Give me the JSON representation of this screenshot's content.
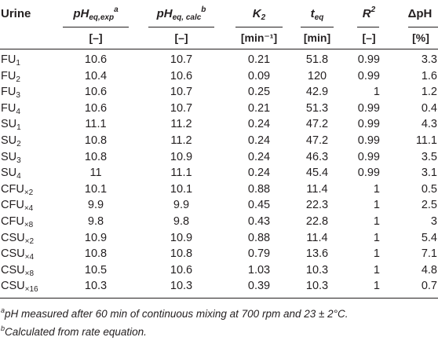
{
  "header": {
    "urine": "Urine",
    "ph_exp": {
      "base": "pH",
      "sub": "eq,exp",
      "sup": "a"
    },
    "ph_calc": {
      "base": "pH",
      "sub": "eq, calc",
      "sup": "b"
    },
    "k2": {
      "base": "K",
      "sub": "2"
    },
    "teq": {
      "base": "t",
      "sub": "eq"
    },
    "r2": {
      "base": "R",
      "sup": "2"
    },
    "dph": "ΔpH"
  },
  "units": [
    "[–]",
    "[–]",
    "[min⁻¹]",
    "[min]",
    "[–]",
    "[%]"
  ],
  "rows": [
    {
      "base": "FU",
      "sub": "1",
      "ph_exp": "10.6",
      "ph_calc": "10.7",
      "k2": "0.21",
      "teq": "51.8",
      "r2": "0.99",
      "dph": "3.3"
    },
    {
      "base": "FU",
      "sub": "2",
      "ph_exp": "10.4",
      "ph_calc": "10.6",
      "k2": "0.09",
      "teq": "120",
      "r2": "0.99",
      "dph": "1.6"
    },
    {
      "base": "FU",
      "sub": "3",
      "ph_exp": "10.6",
      "ph_calc": "10.7",
      "k2": "0.25",
      "teq": "42.9",
      "r2": "1",
      "dph": "1.2"
    },
    {
      "base": "FU",
      "sub": "4",
      "ph_exp": "10.6",
      "ph_calc": "10.7",
      "k2": "0.21",
      "teq": "51.3",
      "r2": "0.99",
      "dph": "0.4"
    },
    {
      "base": "SU",
      "sub": "1",
      "ph_exp": "11.1",
      "ph_calc": "11.2",
      "k2": "0.24",
      "teq": "47.2",
      "r2": "0.99",
      "dph": "4.3"
    },
    {
      "base": "SU",
      "sub": "2",
      "ph_exp": "10.8",
      "ph_calc": "11.2",
      "k2": "0.24",
      "teq": "47.2",
      "r2": "0.99",
      "dph": "11.1"
    },
    {
      "base": "SU",
      "sub": "3",
      "ph_exp": "10.8",
      "ph_calc": "10.9",
      "k2": "0.24",
      "teq": "46.3",
      "r2": "0.99",
      "dph": "3.5"
    },
    {
      "base": "SU",
      "sub": "4",
      "ph_exp": "11",
      "ph_calc": "11.1",
      "k2": "0.24",
      "teq": "45.4",
      "r2": "0.99",
      "dph": "3.1"
    },
    {
      "base": "CFU",
      "sub": "×2",
      "ph_exp": "10.1",
      "ph_calc": "10.1",
      "k2": "0.88",
      "teq": "11.4",
      "r2": "1",
      "dph": "0.5"
    },
    {
      "base": "CFU",
      "sub": "×4",
      "ph_exp": "9.9",
      "ph_calc": "9.9",
      "k2": "0.45",
      "teq": "22.3",
      "r2": "1",
      "dph": "2.5"
    },
    {
      "base": "CFU",
      "sub": "×8",
      "ph_exp": "9.8",
      "ph_calc": "9.8",
      "k2": "0.43",
      "teq": "22.8",
      "r2": "1",
      "dph": "3"
    },
    {
      "base": "CSU",
      "sub": "×2",
      "ph_exp": "10.9",
      "ph_calc": "10.9",
      "k2": "0.88",
      "teq": "11.4",
      "r2": "1",
      "dph": "5.4"
    },
    {
      "base": "CSU",
      "sub": "×4",
      "ph_exp": "10.8",
      "ph_calc": "10.8",
      "k2": "0.79",
      "teq": "13.6",
      "r2": "1",
      "dph": "7.1"
    },
    {
      "base": "CSU",
      "sub": "×8",
      "ph_exp": "10.5",
      "ph_calc": "10.6",
      "k2": "1.03",
      "teq": "10.3",
      "r2": "1",
      "dph": "4.8"
    },
    {
      "base": "CSU",
      "sub": "×16",
      "ph_exp": "10.3",
      "ph_calc": "10.3",
      "k2": "0.39",
      "teq": "10.3",
      "r2": "1",
      "dph": "0.7"
    }
  ],
  "footnotes": [
    {
      "mark": "a",
      "text": "pH measured after 60 min of continuous mixing at 700 rpm and 23 ± 2°C."
    },
    {
      "mark": "b",
      "text": "Calculated from rate equation."
    }
  ]
}
